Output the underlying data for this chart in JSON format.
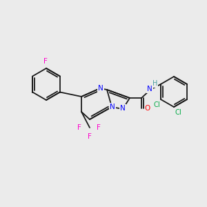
{
  "bg_color": "#ebebeb",
  "bond_color": "#1a1a1a",
  "atom_colors": {
    "F": "#ff00cc",
    "N": "#0000ff",
    "O": "#ff0000",
    "Cl": "#00aa44",
    "H": "#4aa0a0",
    "C": "#1a1a1a"
  },
  "figsize": [
    3.0,
    3.0
  ],
  "dpi": 100
}
